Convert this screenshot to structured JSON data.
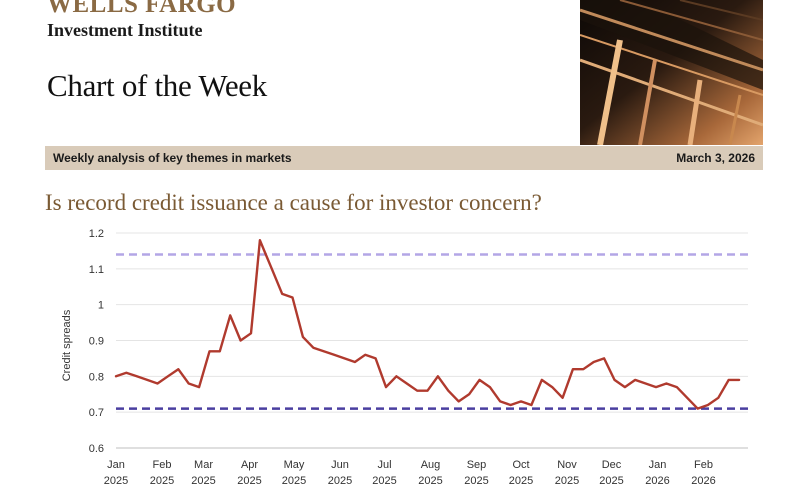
{
  "header": {
    "brand": "WELLS FARGO",
    "institute": "Investment Institute",
    "series_title": "Chart of the Week",
    "band_left": "Weekly analysis of key themes in markets",
    "band_right": "March 3, 2026"
  },
  "colors": {
    "brand_gold": "#8a6a44",
    "band_bg": "#d9cbb9",
    "series_line": "#b03a2e",
    "upper_ref_line": "#b3a6e6",
    "lower_ref_line": "#4a3fa0"
  },
  "photo_icon": "building-glass-facade",
  "chart_data": {
    "type": "line",
    "title": "Is record credit issuance a cause for investor concern?",
    "ylabel": "Credit spreads",
    "xlabel": "",
    "ylim": [
      0.6,
      1.2
    ],
    "yticks": [
      "1.2",
      "1.1",
      "1",
      "0.9",
      "0.8",
      "0.7",
      "0.6"
    ],
    "grid": "horizontal",
    "xtick_labels": [
      [
        "Jan",
        "2025"
      ],
      [
        "Feb",
        "2025"
      ],
      [
        "Mar",
        "2025"
      ],
      [
        "Apr",
        "2025"
      ],
      [
        "May",
        "2025"
      ],
      [
        "Jun",
        "2025"
      ],
      [
        "Jul",
        "2025"
      ],
      [
        "Aug",
        "2025"
      ],
      [
        "Sep",
        "2025"
      ],
      [
        "Oct",
        "2025"
      ],
      [
        "Nov",
        "2025"
      ],
      [
        "Dec",
        "2025"
      ],
      [
        "Jan",
        "2026"
      ],
      [
        "Feb",
        "2026"
      ]
    ],
    "reference_lines": [
      {
        "value": 1.14,
        "style": "dashed"
      },
      {
        "value": 0.71,
        "style": "dashed"
      }
    ],
    "series": [
      {
        "x": [
          "2025-01-01",
          "2025-01-08",
          "2025-01-15",
          "2025-01-22",
          "2025-01-29",
          "2025-02-05",
          "2025-02-12",
          "2025-02-19",
          "2025-02-26",
          "2025-03-05",
          "2025-03-12",
          "2025-03-19",
          "2025-03-26",
          "2025-04-02",
          "2025-04-05",
          "2025-04-08",
          "2025-04-12",
          "2025-04-16",
          "2025-04-23",
          "2025-04-30",
          "2025-05-07",
          "2025-05-14",
          "2025-05-21",
          "2025-05-28",
          "2025-06-04",
          "2025-06-11",
          "2025-06-18",
          "2025-06-25",
          "2025-07-02",
          "2025-07-09",
          "2025-07-16",
          "2025-07-23",
          "2025-07-30",
          "2025-08-06",
          "2025-08-13",
          "2025-08-20",
          "2025-08-27",
          "2025-09-03",
          "2025-09-10",
          "2025-09-17",
          "2025-09-24",
          "2025-10-01",
          "2025-10-08",
          "2025-10-15",
          "2025-10-22",
          "2025-10-29",
          "2025-11-05",
          "2025-11-12",
          "2025-11-19",
          "2025-11-26",
          "2025-12-03",
          "2025-12-10",
          "2025-12-17",
          "2025-12-24",
          "2025-12-31",
          "2026-01-07",
          "2026-01-14",
          "2026-01-21",
          "2026-01-28",
          "2026-02-04",
          "2026-02-11",
          "2026-02-18",
          "2026-02-25"
        ],
        "values": [
          0.8,
          0.81,
          0.8,
          0.79,
          0.78,
          0.8,
          0.82,
          0.78,
          0.77,
          0.87,
          0.87,
          0.97,
          0.9,
          0.92,
          1.05,
          1.18,
          1.14,
          1.1,
          1.03,
          1.02,
          0.91,
          0.88,
          0.87,
          0.86,
          0.85,
          0.84,
          0.86,
          0.85,
          0.77,
          0.8,
          0.78,
          0.76,
          0.76,
          0.8,
          0.76,
          0.73,
          0.75,
          0.79,
          0.77,
          0.73,
          0.72,
          0.73,
          0.72,
          0.79,
          0.77,
          0.74,
          0.82,
          0.82,
          0.84,
          0.85,
          0.79,
          0.77,
          0.79,
          0.78,
          0.77,
          0.78,
          0.77,
          0.74,
          0.71,
          0.72,
          0.74,
          0.79,
          0.79
        ]
      }
    ]
  }
}
